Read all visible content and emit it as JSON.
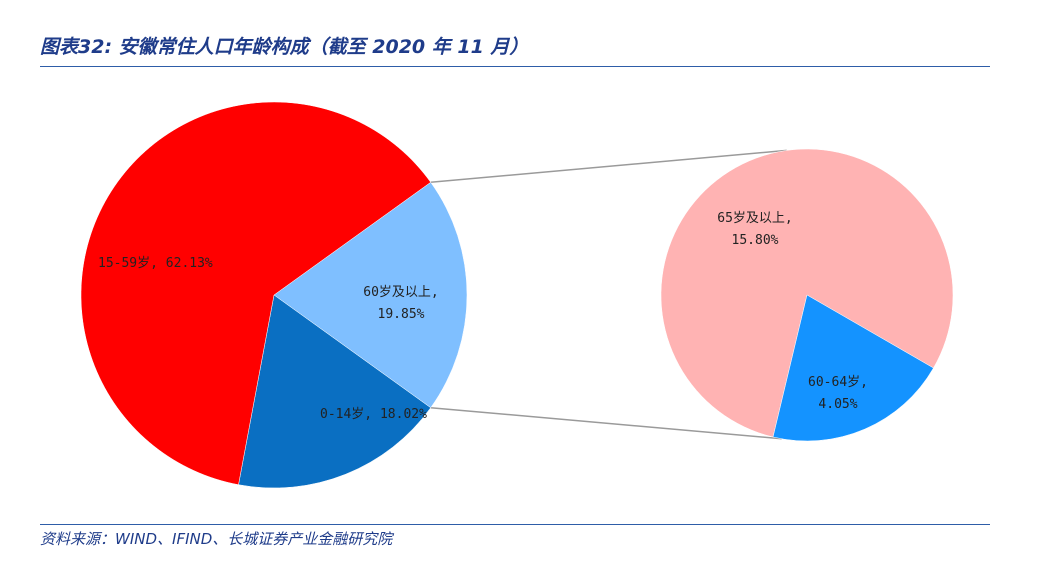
{
  "title": "图表32:  安徽常住人口年龄构成（截至 2020 年 11 月）",
  "source": "资料来源：WIND、IFIND、长城证券产业金融研究院",
  "chart_data": [
    {
      "type": "pie",
      "slices": [
        {
          "name": "15-59岁",
          "value": 62.13,
          "label_lines": [
            "15-59岁, 62.13%"
          ],
          "color": "#ff0000"
        },
        {
          "name": "60岁及以上",
          "value": 19.85,
          "label_lines": [
            "60岁及以上,",
            "19.85%"
          ],
          "color": "#7fbfff"
        },
        {
          "name": "0-14岁",
          "value": 18.02,
          "label_lines": [
            "0-14岁, 18.02%"
          ],
          "color": "#0a6fc2"
        }
      ]
    },
    {
      "type": "pie",
      "slices": [
        {
          "name": "65岁及以上",
          "value": 15.8,
          "label_lines": [
            "65岁及以上,",
            "15.80%"
          ],
          "color": "#ffb3b3"
        },
        {
          "name": "60-64岁",
          "value": 4.05,
          "label_lines": [
            "60-64岁,",
            "4.05%"
          ],
          "color": "#1493ff"
        }
      ]
    }
  ]
}
